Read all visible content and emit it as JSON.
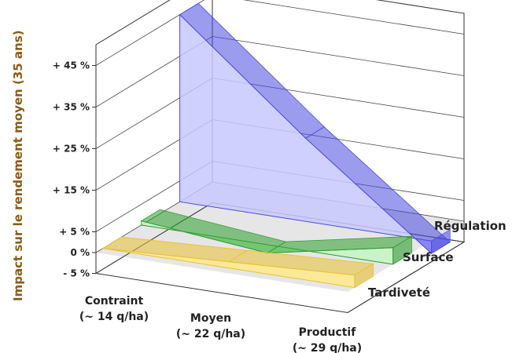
{
  "chart_data": {
    "type": "area",
    "ylabel": "Impact sur le rendement moyen (35 ans)",
    "ylim": [
      -5,
      50
    ],
    "y_ticks": [
      "- 5 %",
      "0 %",
      "+ 5 %",
      "+ 15 %",
      "+ 25 %",
      "+ 35 %",
      "+ 45 %"
    ],
    "y_tick_values": [
      -5,
      0,
      5,
      15,
      25,
      35,
      45
    ],
    "categories": [
      {
        "line1": "Contraint",
        "line2": "(~ 14 q/ha)"
      },
      {
        "line1": "Moyen",
        "line2": "(~ 22 q/ha)"
      },
      {
        "line1": "Productif",
        "line2": "(~ 29 q/ha)"
      }
    ],
    "series": [
      {
        "name": "Tardiveté",
        "values": [
          0,
          1.5,
          3
        ],
        "color": "#FFE98A",
        "stroke": "#E8C030"
      },
      {
        "name": "Surface",
        "values": [
          1,
          -2,
          4
        ],
        "color": "#C4F5C4",
        "stroke": "#2E9E2E"
      },
      {
        "name": "Régulation",
        "values": [
          45,
          20,
          -3
        ],
        "color": "#C8C8FF",
        "stroke": "#4A4AE0"
      }
    ],
    "grid": true
  }
}
